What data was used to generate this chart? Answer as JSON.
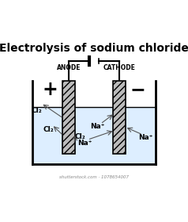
{
  "title": "Electrolysis of sodium chloride",
  "background_color": "#ffffff",
  "liquid_color": "#ddeeff",
  "electrode_hatch": "////",
  "electrode_color": "#bbbbbb",
  "electrode_edge": "#000000",
  "anode_label": "ANODE",
  "cathode_label": "CATHODE",
  "plus_label": "+",
  "minus_label": "−",
  "cl2_labels": [
    "Cl₂",
    "Cl₂",
    "Cl₂"
  ],
  "na_labels": [
    "Na⁺",
    "Na⁺",
    "Na⁺"
  ],
  "watermark": "shutterstock.com · 1078654007"
}
